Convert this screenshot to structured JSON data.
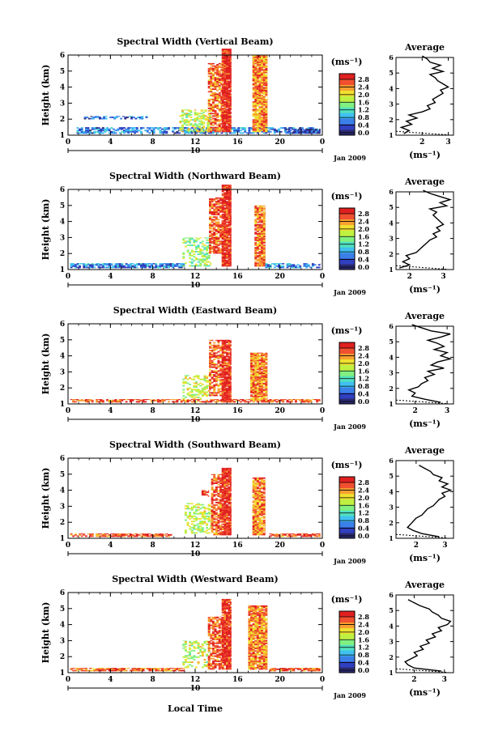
{
  "figure": {
    "xlabel": "Local Time",
    "date_day": "10",
    "date_label": "Jan 2009"
  },
  "colorbar": {
    "unit_label": "(ms⁻¹)",
    "ticks": [
      "0.0",
      "0.4",
      "0.8",
      "1.2",
      "1.6",
      "2.0",
      "2.4",
      "2.8"
    ],
    "min": 0.0,
    "max": 3.0,
    "colors": [
      "#2a2a70",
      "#3040c0",
      "#3a80e8",
      "#40c0f0",
      "#50e0c0",
      "#80f080",
      "#c0f040",
      "#f0e030",
      "#f8a030",
      "#f05030",
      "#e02020"
    ]
  },
  "chart_data": [
    {
      "type": "heatmap",
      "title": "Spectral Width (Vertical Beam)",
      "ylabel": "Height (km)",
      "xlim": [
        0,
        24
      ],
      "ylim": [
        1,
        6
      ],
      "xticks": [
        "0",
        "4",
        "8",
        "12",
        "16",
        "20",
        "0"
      ],
      "yticks": [
        "1",
        "2",
        "3",
        "4",
        "5",
        "6"
      ],
      "unit": "(ms⁻¹)",
      "regions": [
        {
          "x": [
            0.8,
            23.8
          ],
          "y": [
            1.1,
            1.5
          ],
          "v": 0.7,
          "sparse": 0.35
        },
        {
          "x": [
            1.5,
            7.5
          ],
          "y": [
            2.0,
            2.2
          ],
          "v": 0.6,
          "sparse": 0.45
        },
        {
          "x": [
            10.5,
            13.5
          ],
          "y": [
            1.2,
            2.6
          ],
          "v": 1.8,
          "sparse": 0.5
        },
        {
          "x": [
            13.2,
            14.5
          ],
          "y": [
            1.2,
            5.5
          ],
          "v": 2.5,
          "sparse": 0.3
        },
        {
          "x": [
            14.5,
            15.4
          ],
          "y": [
            1.2,
            6.4
          ],
          "v": 2.8,
          "sparse": 0.05
        },
        {
          "x": [
            17.4,
            18.8
          ],
          "y": [
            1.2,
            6.0
          ],
          "v": 2.4,
          "sparse": 0.1
        },
        {
          "x": [
            20.5,
            23.8
          ],
          "y": [
            1.1,
            1.4
          ],
          "v": 0.4,
          "sparse": 0.3
        }
      ],
      "avg_title": "Average",
      "avg_xlim": [
        1.0,
        3.2
      ],
      "avg_xticks": [
        "2",
        "3"
      ],
      "avg_xlabel": "(ms⁻¹)",
      "avg_profile": {
        "height": [
          1.1,
          1.3,
          1.5,
          1.7,
          1.9,
          2.1,
          2.3,
          2.5,
          2.7,
          2.9,
          3.1,
          3.3,
          3.5,
          3.7,
          3.9,
          4.1,
          4.3,
          4.5,
          4.7,
          4.9,
          5.1,
          5.3,
          5.5,
          5.7,
          5.9,
          6.1
        ],
        "value": [
          1.3,
          1.5,
          1.2,
          1.6,
          1.4,
          1.8,
          1.5,
          2.0,
          2.3,
          2.2,
          2.5,
          2.4,
          2.6,
          2.8,
          2.7,
          3.0,
          2.8,
          2.6,
          2.5,
          2.3,
          2.8,
          2.4,
          2.7,
          2.3,
          2.2,
          2.0
        ]
      }
    },
    {
      "type": "heatmap",
      "title": "Spectral Width (Northward Beam)",
      "ylabel": "Height (km)",
      "xlim": [
        0,
        24
      ],
      "ylim": [
        1,
        6
      ],
      "xticks": [
        "0",
        "4",
        "8",
        "12",
        "16",
        "20",
        "0"
      ],
      "yticks": [
        "1",
        "2",
        "3",
        "4",
        "5",
        "6"
      ],
      "unit": "(ms⁻¹)",
      "regions": [
        {
          "x": [
            0.2,
            11.0
          ],
          "y": [
            1.1,
            1.4
          ],
          "v": 0.7,
          "sparse": 0.2
        },
        {
          "x": [
            10.8,
            13.5
          ],
          "y": [
            1.2,
            3.0
          ],
          "v": 1.6,
          "sparse": 0.55
        },
        {
          "x": [
            13.3,
            14.5
          ],
          "y": [
            2.0,
            5.5
          ],
          "v": 2.6,
          "sparse": 0.3
        },
        {
          "x": [
            14.5,
            15.4
          ],
          "y": [
            1.2,
            6.3
          ],
          "v": 2.8,
          "sparse": 0.05
        },
        {
          "x": [
            17.6,
            18.6
          ],
          "y": [
            1.2,
            5.0
          ],
          "v": 2.5,
          "sparse": 0.1
        },
        {
          "x": [
            18.6,
            23.8
          ],
          "y": [
            1.1,
            1.4
          ],
          "v": 0.8,
          "sparse": 0.4
        }
      ],
      "avg_title": "Average",
      "avg_xlim": [
        1.6,
        3.3
      ],
      "avg_xticks": [
        "2",
        "3"
      ],
      "avg_xlabel": "(ms⁻¹)",
      "avg_profile": {
        "height": [
          1.1,
          1.3,
          1.5,
          1.7,
          1.9,
          2.1,
          2.3,
          2.5,
          2.7,
          2.9,
          3.1,
          3.3,
          3.5,
          3.7,
          3.9,
          4.1,
          4.3,
          4.5,
          4.7,
          4.9,
          5.1,
          5.3,
          5.5,
          5.7,
          5.9,
          6.1
        ],
        "value": [
          1.7,
          2.0,
          1.8,
          2.0,
          1.9,
          2.2,
          2.3,
          2.4,
          2.5,
          2.6,
          2.8,
          2.7,
          2.9,
          2.8,
          3.0,
          2.9,
          2.8,
          2.7,
          2.8,
          2.6,
          3.1,
          2.9,
          3.2,
          2.9,
          2.6,
          2.4
        ]
      }
    },
    {
      "type": "heatmap",
      "title": "Spectral Width (Eastward Beam)",
      "ylabel": "Height (km)",
      "xlim": [
        0,
        24
      ],
      "ylim": [
        1,
        6
      ],
      "xticks": [
        "0",
        "4",
        "8",
        "12",
        "16",
        "20",
        "0"
      ],
      "yticks": [
        "1",
        "2",
        "3",
        "4",
        "5",
        "6"
      ],
      "unit": "(ms⁻¹)",
      "regions": [
        {
          "x": [
            0.2,
            23.8
          ],
          "y": [
            1.1,
            1.3
          ],
          "v": 2.6,
          "sparse": 0.3
        },
        {
          "x": [
            10.8,
            13.4
          ],
          "y": [
            1.3,
            2.8
          ],
          "v": 1.8,
          "sparse": 0.6
        },
        {
          "x": [
            13.3,
            14.5
          ],
          "y": [
            1.5,
            5.0
          ],
          "v": 2.5,
          "sparse": 0.35
        },
        {
          "x": [
            14.5,
            15.4
          ],
          "y": [
            1.2,
            5.0
          ],
          "v": 2.8,
          "sparse": 0.05
        },
        {
          "x": [
            17.2,
            18.8
          ],
          "y": [
            1.2,
            4.2
          ],
          "v": 2.4,
          "sparse": 0.1
        }
      ],
      "avg_title": "Average",
      "avg_xlim": [
        1.4,
        3.2
      ],
      "avg_xticks": [
        "2",
        "3"
      ],
      "avg_xlabel": "(ms⁻¹)",
      "avg_profile": {
        "height": [
          1.1,
          1.3,
          1.5,
          1.7,
          1.9,
          2.1,
          2.3,
          2.5,
          2.7,
          2.9,
          3.1,
          3.3,
          3.5,
          3.7,
          3.9,
          4.1,
          4.3,
          4.5,
          4.7,
          4.9,
          5.1,
          5.3,
          5.5,
          5.7,
          5.9,
          6.1
        ],
        "value": [
          2.8,
          2.3,
          1.9,
          2.0,
          1.8,
          2.1,
          2.2,
          2.4,
          2.3,
          2.6,
          2.4,
          2.9,
          2.5,
          2.7,
          3.1,
          2.8,
          3.0,
          2.6,
          2.9,
          2.7,
          2.4,
          2.8,
          3.1,
          2.5,
          2.2,
          1.9
        ]
      }
    },
    {
      "type": "heatmap",
      "title": "Spectral Width (Southward Beam)",
      "ylabel": "Height (km)",
      "xlim": [
        0,
        24
      ],
      "ylim": [
        1,
        6
      ],
      "xticks": [
        "0",
        "4",
        "8",
        "12",
        "16",
        "20",
        "0"
      ],
      "yticks": [
        "1",
        "2",
        "3",
        "4",
        "5",
        "6"
      ],
      "unit": "(ms⁻¹)",
      "regions": [
        {
          "x": [
            0.2,
            9.8
          ],
          "y": [
            1.1,
            1.3
          ],
          "v": 2.6,
          "sparse": 0.25
        },
        {
          "x": [
            11.0,
            13.5
          ],
          "y": [
            1.3,
            3.2
          ],
          "v": 1.8,
          "sparse": 0.55
        },
        {
          "x": [
            12.6,
            13.3
          ],
          "y": [
            3.6,
            4.0
          ],
          "v": 2.8,
          "sparse": 0.3
        },
        {
          "x": [
            13.5,
            14.5
          ],
          "y": [
            1.2,
            5.0
          ],
          "v": 2.6,
          "sparse": 0.3
        },
        {
          "x": [
            14.5,
            15.4
          ],
          "y": [
            1.2,
            5.4
          ],
          "v": 2.8,
          "sparse": 0.05
        },
        {
          "x": [
            17.4,
            18.6
          ],
          "y": [
            1.2,
            4.8
          ],
          "v": 2.4,
          "sparse": 0.1
        },
        {
          "x": [
            19.0,
            23.8
          ],
          "y": [
            1.1,
            1.3
          ],
          "v": 2.6,
          "sparse": 0.15
        }
      ],
      "avg_title": "Average",
      "avg_xlim": [
        1.3,
        3.3
      ],
      "avg_xticks": [
        "2",
        "3"
      ],
      "avg_xlabel": "(ms⁻¹)",
      "avg_profile": {
        "height": [
          1.1,
          1.3,
          1.5,
          1.7,
          1.9,
          2.1,
          2.3,
          2.5,
          2.7,
          2.9,
          3.1,
          3.3,
          3.5,
          3.7,
          3.9,
          4.1,
          4.3,
          4.5,
          4.7,
          4.9,
          5.1,
          5.3,
          5.5,
          5.7
        ],
        "value": [
          2.8,
          2.2,
          1.9,
          1.7,
          1.8,
          1.9,
          2.0,
          2.2,
          2.3,
          2.4,
          2.6,
          2.7,
          2.8,
          3.0,
          2.9,
          3.2,
          2.9,
          3.1,
          2.8,
          2.9,
          2.6,
          2.5,
          2.3,
          2.1
        ]
      }
    },
    {
      "type": "heatmap",
      "title": "Spectral Width (Westward Beam)",
      "ylabel": "Height (km)",
      "xlim": [
        0,
        24
      ],
      "ylim": [
        1,
        6
      ],
      "xticks": [
        "0",
        "4",
        "8",
        "12",
        "16",
        "20",
        "0"
      ],
      "yticks": [
        "1",
        "2",
        "3",
        "4",
        "5",
        "6"
      ],
      "unit": "(ms⁻¹)",
      "regions": [
        {
          "x": [
            0.2,
            11.0
          ],
          "y": [
            1.1,
            1.3
          ],
          "v": 2.5,
          "sparse": 0.2
        },
        {
          "x": [
            10.8,
            13.4
          ],
          "y": [
            1.3,
            3.0
          ],
          "v": 1.8,
          "sparse": 0.6
        },
        {
          "x": [
            13.2,
            14.5
          ],
          "y": [
            1.2,
            4.5
          ],
          "v": 2.6,
          "sparse": 0.35
        },
        {
          "x": [
            14.5,
            15.4
          ],
          "y": [
            1.2,
            5.6
          ],
          "v": 2.8,
          "sparse": 0.05
        },
        {
          "x": [
            17.0,
            18.8
          ],
          "y": [
            1.2,
            5.2
          ],
          "v": 2.4,
          "sparse": 0.1
        },
        {
          "x": [
            19.0,
            23.8
          ],
          "y": [
            1.1,
            1.3
          ],
          "v": 2.5,
          "sparse": 0.2
        }
      ],
      "avg_title": "Average",
      "avg_xlim": [
        1.4,
        3.3
      ],
      "avg_xticks": [
        "2",
        "3"
      ],
      "avg_xlabel": "(ms⁻¹)",
      "avg_profile": {
        "height": [
          1.1,
          1.3,
          1.5,
          1.7,
          1.9,
          2.1,
          2.3,
          2.5,
          2.7,
          2.9,
          3.1,
          3.3,
          3.5,
          3.7,
          3.9,
          4.1,
          4.3,
          4.5,
          4.7,
          4.9,
          5.1,
          5.3,
          5.5,
          5.7
        ],
        "value": [
          2.9,
          2.0,
          1.8,
          1.7,
          1.9,
          2.1,
          2.0,
          2.3,
          2.2,
          2.5,
          2.4,
          2.7,
          2.6,
          2.9,
          2.8,
          3.1,
          3.2,
          2.9,
          2.8,
          2.6,
          2.5,
          2.2,
          2.0,
          1.8
        ]
      }
    }
  ]
}
